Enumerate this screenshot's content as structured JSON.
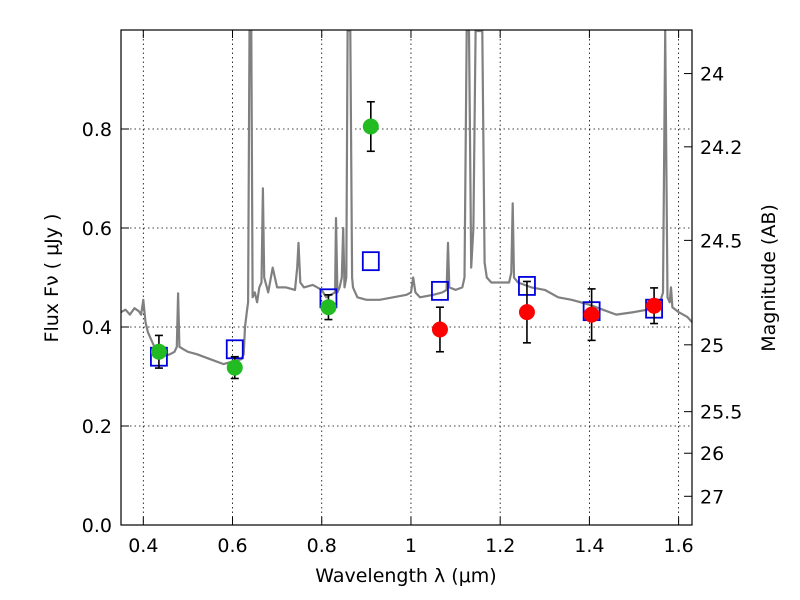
{
  "chart_data": {
    "type": "scatter",
    "xlabel": "Wavelength  λ (μm)",
    "ylabel": "Flux  Fν  ( μJy )",
    "ylabel2": "Magnitude (AB)",
    "xlim": [
      0.35,
      1.63
    ],
    "ylim": [
      0.0,
      1.0
    ],
    "grid": true,
    "x_ticks": [
      0.4,
      0.6,
      0.8,
      1.0,
      1.2,
      1.4,
      1.6
    ],
    "x_tick_labels": [
      "0.4",
      "0.6",
      "0.8",
      "1",
      "1.2",
      "1.4",
      "1.6"
    ],
    "y_ticks": [
      0.0,
      0.2,
      0.4,
      0.6,
      0.8
    ],
    "y_tick_labels": [
      "0.0",
      "0.2",
      "0.4",
      "0.6",
      "0.8"
    ],
    "mag_ticks": [
      {
        "flux": 0.912,
        "label": "24"
      },
      {
        "flux": 0.764,
        "label": "24.2"
      },
      {
        "flux": 0.575,
        "label": "24.5"
      },
      {
        "flux": 0.364,
        "label": "25"
      },
      {
        "flux": 0.229,
        "label": "25.5"
      },
      {
        "flux": 0.145,
        "label": "26"
      },
      {
        "flux": 0.058,
        "label": "27"
      }
    ],
    "colors": {
      "spectrum": "#808080",
      "green": "#22bb22",
      "red": "#ff0000",
      "model": "#0000dd"
    },
    "series": [
      {
        "name": "green points",
        "color": "#22bb22",
        "x": [
          0.435,
          0.605,
          0.815,
          0.91
        ],
        "y": [
          0.35,
          0.318,
          0.44,
          0.805
        ],
        "yerr": [
          0.033,
          0.022,
          0.025,
          0.05
        ]
      },
      {
        "name": "red points",
        "color": "#ff0000",
        "x": [
          1.065,
          1.26,
          1.405,
          1.545
        ],
        "y": [
          0.395,
          0.43,
          0.425,
          0.443
        ],
        "yerr": [
          0.045,
          0.062,
          0.052,
          0.036
        ]
      },
      {
        "name": "model squares",
        "color": "#0000dd",
        "x": [
          0.435,
          0.605,
          0.815,
          0.91,
          1.065,
          1.26,
          1.405,
          1.545
        ],
        "y": [
          0.34,
          0.355,
          0.458,
          0.533,
          0.473,
          0.483,
          0.432,
          0.437
        ]
      }
    ],
    "spectrum": [
      [
        0.35,
        0.43
      ],
      [
        0.36,
        0.435
      ],
      [
        0.37,
        0.425
      ],
      [
        0.38,
        0.438
      ],
      [
        0.39,
        0.432
      ],
      [
        0.395,
        0.425
      ],
      [
        0.4,
        0.455
      ],
      [
        0.405,
        0.41
      ],
      [
        0.41,
        0.39
      ],
      [
        0.42,
        0.37
      ],
      [
        0.43,
        0.35
      ],
      [
        0.44,
        0.345
      ],
      [
        0.45,
        0.342
      ],
      [
        0.46,
        0.345
      ],
      [
        0.47,
        0.35
      ],
      [
        0.475,
        0.36
      ],
      [
        0.478,
        0.468
      ],
      [
        0.481,
        0.36
      ],
      [
        0.49,
        0.355
      ],
      [
        0.5,
        0.35
      ],
      [
        0.52,
        0.345
      ],
      [
        0.55,
        0.335
      ],
      [
        0.58,
        0.325
      ],
      [
        0.6,
        0.33
      ],
      [
        0.62,
        0.335
      ],
      [
        0.625,
        0.345
      ],
      [
        0.628,
        0.4
      ],
      [
        0.632,
        0.43
      ],
      [
        0.635,
        0.45
      ],
      [
        0.638,
        1.0
      ],
      [
        0.642,
        1.0
      ],
      [
        0.645,
        0.46
      ],
      [
        0.65,
        0.47
      ],
      [
        0.655,
        0.45
      ],
      [
        0.66,
        0.48
      ],
      [
        0.665,
        0.49
      ],
      [
        0.668,
        0.68
      ],
      [
        0.671,
        0.5
      ],
      [
        0.68,
        0.47
      ],
      [
        0.69,
        0.52
      ],
      [
        0.7,
        0.48
      ],
      [
        0.72,
        0.48
      ],
      [
        0.74,
        0.475
      ],
      [
        0.745,
        0.52
      ],
      [
        0.748,
        0.57
      ],
      [
        0.752,
        0.49
      ],
      [
        0.76,
        0.48
      ],
      [
        0.78,
        0.485
      ],
      [
        0.79,
        0.48
      ],
      [
        0.8,
        0.475
      ],
      [
        0.81,
        0.46
      ],
      [
        0.82,
        0.465
      ],
      [
        0.83,
        0.47
      ],
      [
        0.832,
        0.62
      ],
      [
        0.835,
        0.47
      ],
      [
        0.84,
        0.48
      ],
      [
        0.845,
        0.5
      ],
      [
        0.848,
        0.6
      ],
      [
        0.851,
        0.48
      ],
      [
        0.855,
        0.5
      ],
      [
        0.858,
        1.0
      ],
      [
        0.864,
        1.0
      ],
      [
        0.868,
        0.5
      ],
      [
        0.87,
        0.48
      ],
      [
        0.88,
        0.46
      ],
      [
        0.9,
        0.455
      ],
      [
        0.93,
        0.455
      ],
      [
        0.96,
        0.46
      ],
      [
        0.99,
        0.465
      ],
      [
        1.0,
        0.47
      ],
      [
        1.005,
        0.5
      ],
      [
        1.01,
        0.47
      ],
      [
        1.02,
        0.46
      ],
      [
        1.05,
        0.465
      ],
      [
        1.07,
        0.47
      ],
      [
        1.08,
        0.475
      ],
      [
        1.083,
        0.57
      ],
      [
        1.086,
        0.48
      ],
      [
        1.1,
        0.475
      ],
      [
        1.115,
        0.48
      ],
      [
        1.12,
        0.5
      ],
      [
        1.125,
        1.0
      ],
      [
        1.13,
        1.0
      ],
      [
        1.135,
        0.52
      ],
      [
        1.14,
        0.6
      ],
      [
        1.145,
        1.0
      ],
      [
        1.16,
        1.0
      ],
      [
        1.165,
        0.53
      ],
      [
        1.17,
        0.5
      ],
      [
        1.18,
        0.49
      ],
      [
        1.2,
        0.49
      ],
      [
        1.22,
        0.49
      ],
      [
        1.225,
        0.51
      ],
      [
        1.228,
        0.65
      ],
      [
        1.231,
        0.5
      ],
      [
        1.24,
        0.49
      ],
      [
        1.27,
        0.48
      ],
      [
        1.3,
        0.475
      ],
      [
        1.33,
        0.46
      ],
      [
        1.36,
        0.455
      ],
      [
        1.4,
        0.445
      ],
      [
        1.43,
        0.435
      ],
      [
        1.46,
        0.425
      ],
      [
        1.5,
        0.43
      ],
      [
        1.53,
        0.435
      ],
      [
        1.55,
        0.45
      ],
      [
        1.56,
        0.455
      ],
      [
        1.565,
        0.47
      ],
      [
        1.57,
        1.0
      ],
      [
        1.575,
        0.46
      ],
      [
        1.58,
        0.45
      ],
      [
        1.583,
        0.48
      ],
      [
        1.586,
        0.44
      ],
      [
        1.6,
        0.43
      ],
      [
        1.62,
        0.42
      ],
      [
        1.63,
        0.41
      ]
    ]
  }
}
